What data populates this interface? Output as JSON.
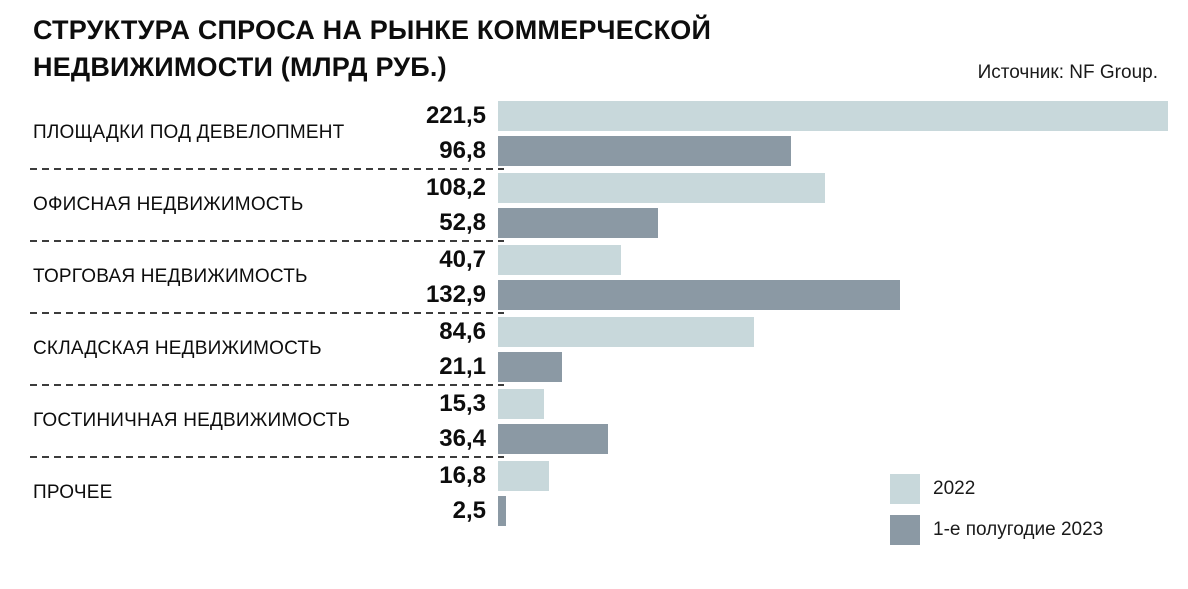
{
  "header": {
    "title_line1": "СТРУКТУРА СПРОСА НА РЫНКЕ КОММЕРЧЕСКОЙ",
    "title_line2": "НЕДВИЖИМОСТИ (МЛРД РУБ.)",
    "source": "Источник: NF Group."
  },
  "colors": {
    "series_2022": "#c8d8db",
    "series_2023": "#8b99a4"
  },
  "legend": {
    "items": [
      {
        "label": "2022",
        "color": "#c8d8db"
      },
      {
        "label": "1-е полугодие 2023",
        "color": "#8b99a4"
      }
    ]
  },
  "chart_data": {
    "type": "bar",
    "orientation": "horizontal",
    "title": "СТРУКТУРА СПРОСА НА РЫНКЕ КОММЕРЧЕСКОЙ НЕДВИЖИМОСТИ (МЛРД РУБ.)",
    "source": "Источник: NF Group.",
    "xlabel": "",
    "ylabel": "",
    "unit": "млрд руб.",
    "xmax": 221.5,
    "legend_position": "bottom-right",
    "grid": false,
    "categories": [
      "ПЛОЩАДКИ ПОД ДЕВЕЛОПМЕНТ",
      "ОФИСНАЯ НЕДВИЖИМОСТЬ",
      "ТОРГОВАЯ НЕДВИЖИМОСТЬ",
      "СКЛАДСКАЯ НЕДВИЖИМОСТЬ",
      "ГОСТИНИЧНАЯ НЕДВИЖИМОСТЬ",
      "ПРОЧЕЕ"
    ],
    "series": [
      {
        "name": "2022",
        "values": [
          221.5,
          108.2,
          40.7,
          84.6,
          15.3,
          16.8
        ]
      },
      {
        "name": "1-е полугодие 2023",
        "values": [
          96.8,
          52.8,
          132.9,
          21.1,
          36.4,
          2.5
        ]
      }
    ],
    "groups": [
      {
        "label": "ПЛОЩАДКИ ПОД ДЕВЕЛОПМЕНТ",
        "v2022": 221.5,
        "v2023": 96.8,
        "v2022_label": "221,5",
        "v2023_label": "96,8"
      },
      {
        "label": "ОФИСНАЯ НЕДВИЖИМОСТЬ",
        "v2022": 108.2,
        "v2023": 52.8,
        "v2022_label": "108,2",
        "v2023_label": "52,8"
      },
      {
        "label": "ТОРГОВАЯ НЕДВИЖИМОСТЬ",
        "v2022": 40.7,
        "v2023": 132.9,
        "v2022_label": "40,7",
        "v2023_label": "132,9"
      },
      {
        "label": "СКЛАДСКАЯ НЕДВИЖИМОСТЬ",
        "v2022": 84.6,
        "v2023": 21.1,
        "v2022_label": "84,6",
        "v2023_label": "21,1"
      },
      {
        "label": "ГОСТИНИЧНАЯ НЕДВИЖИМОСТЬ",
        "v2022": 15.3,
        "v2023": 36.4,
        "v2022_label": "15,3",
        "v2023_label": "36,4"
      },
      {
        "label": "ПРОЧЕЕ",
        "v2022": 16.8,
        "v2023": 2.5,
        "v2022_label": "16,8",
        "v2023_label": "2,5"
      }
    ]
  }
}
